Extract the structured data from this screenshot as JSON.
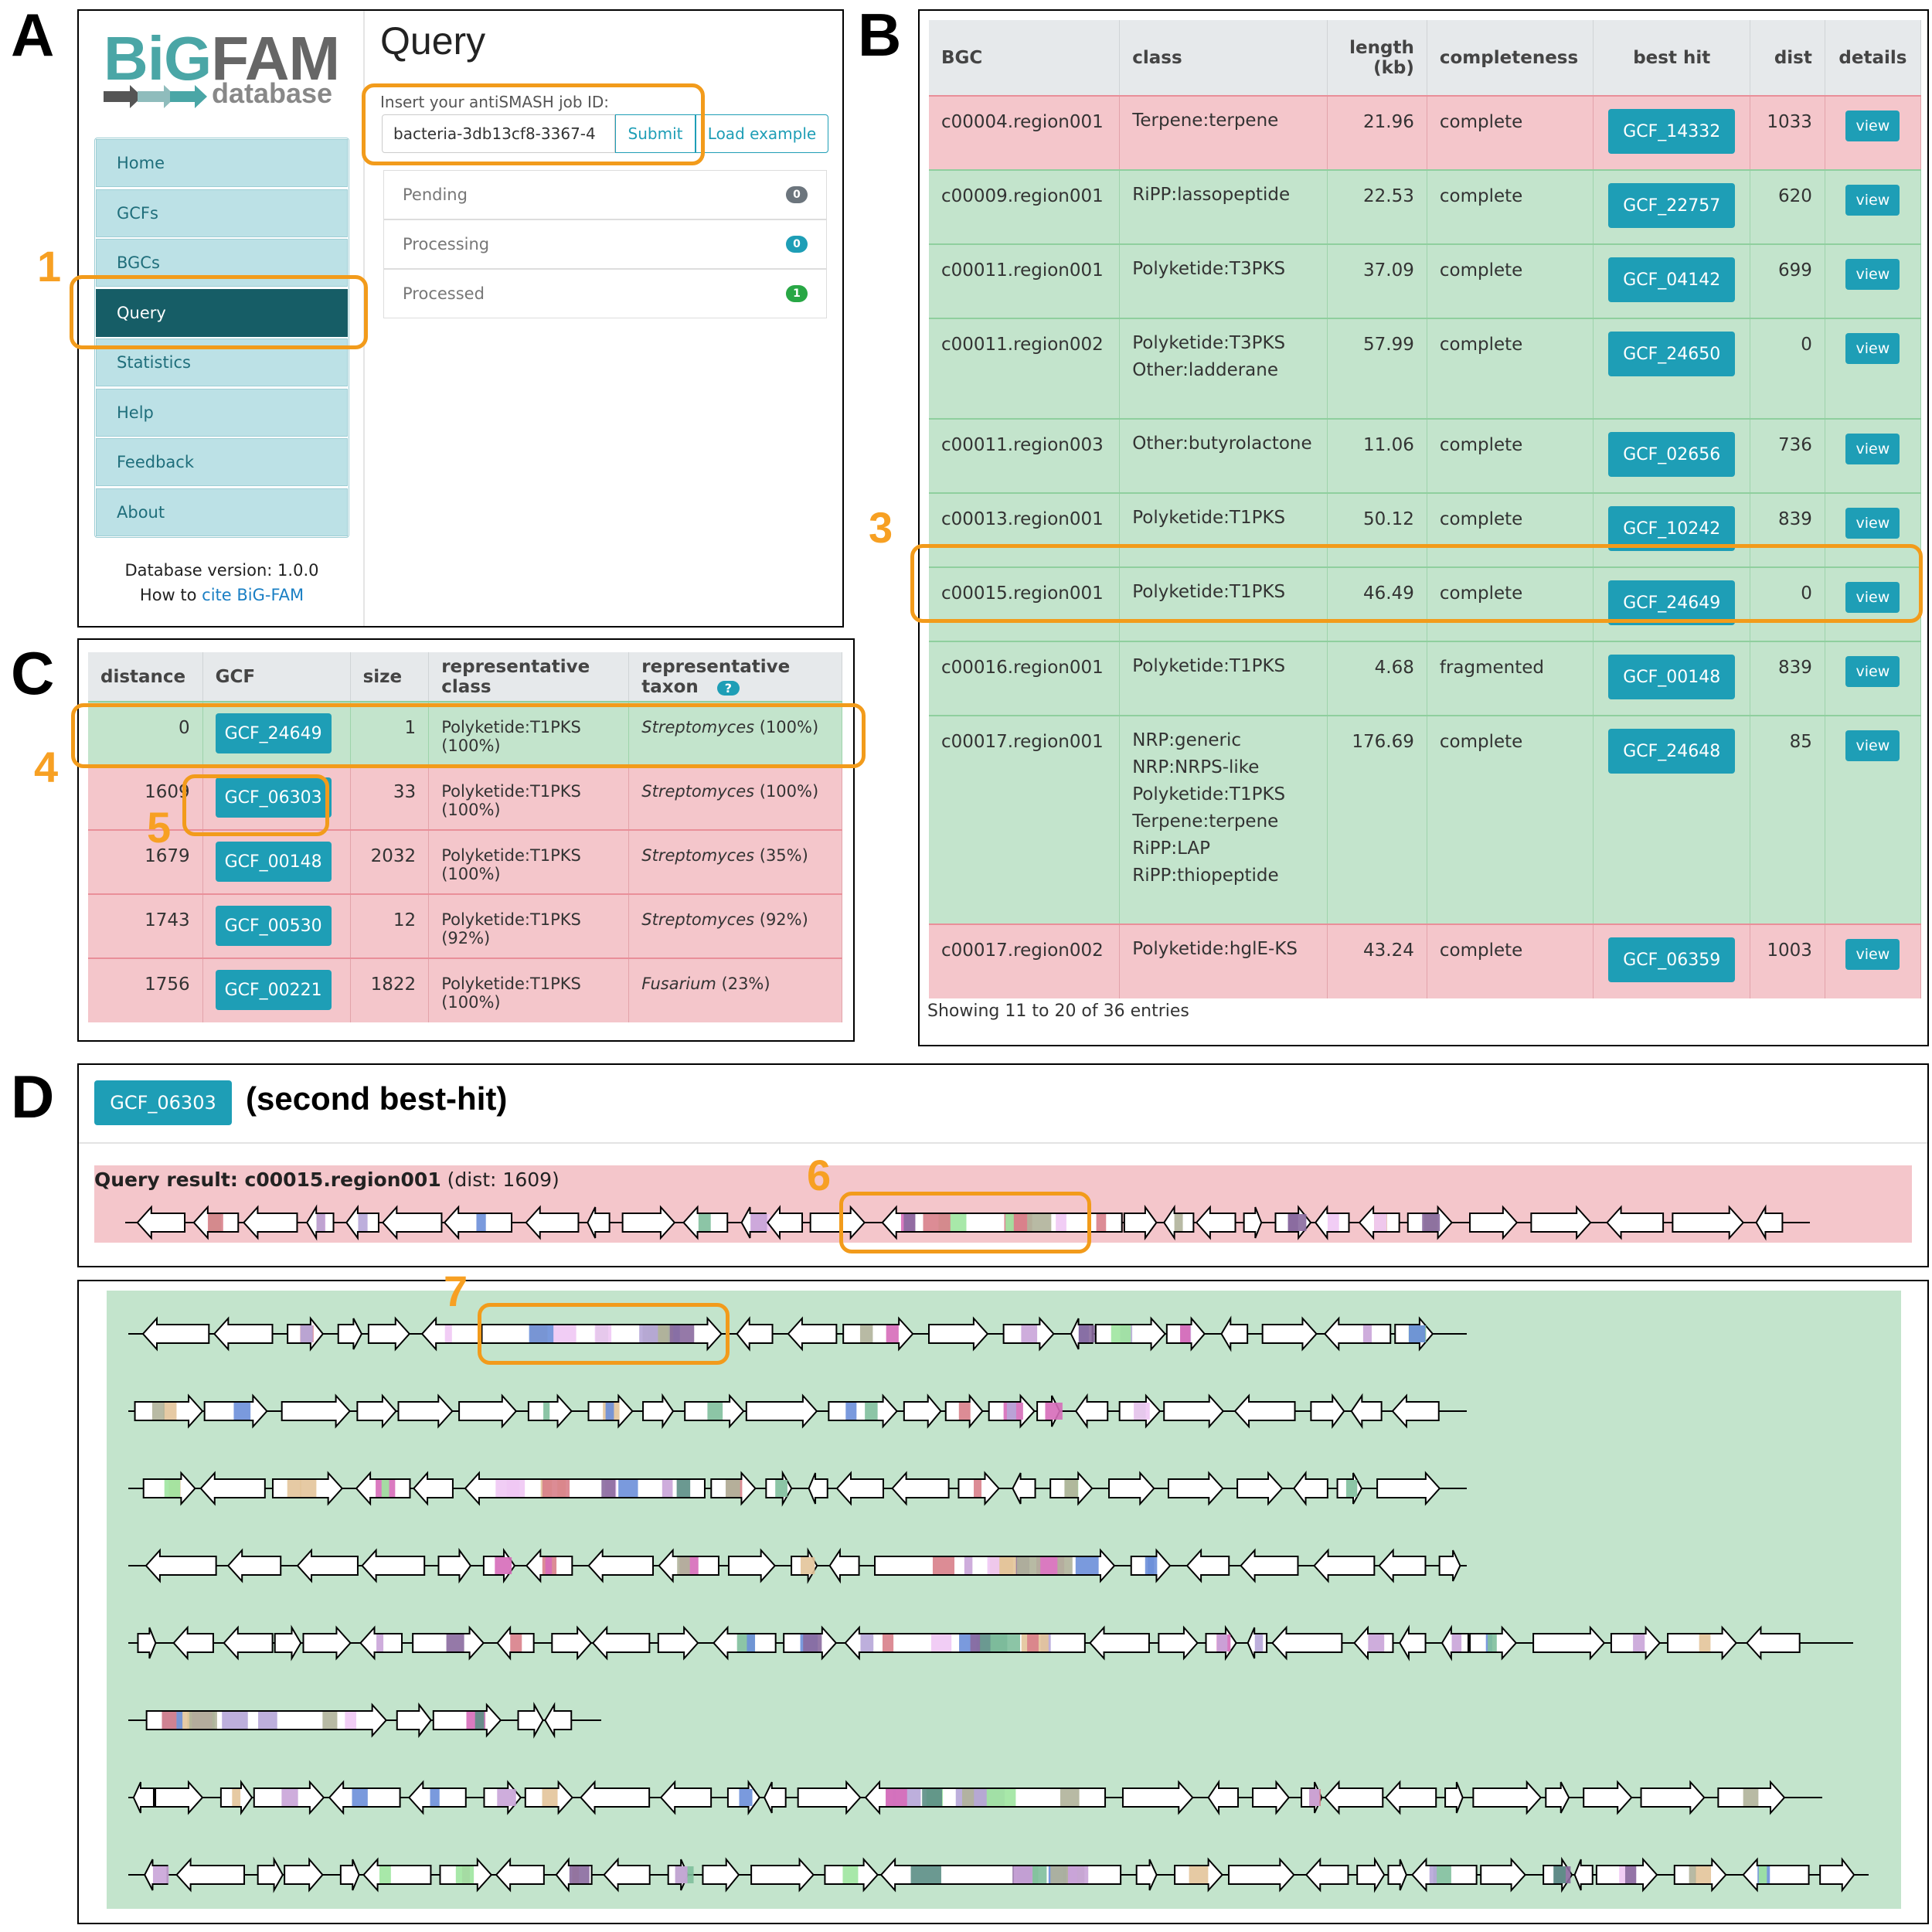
{
  "panel_labels": {
    "a": "A",
    "b": "B",
    "c": "C",
    "d": "D"
  },
  "steps": {
    "s1": "1",
    "s3": "3",
    "s4": "4",
    "s5": "5",
    "s6": "6",
    "s7": "7"
  },
  "colors": {
    "accent_orange": "#f29b1b",
    "teal": "#1e9eb6",
    "nav_active": "#165d66",
    "row_red": "#f4c6cb",
    "row_green": "#c3e4cc"
  },
  "panel_a": {
    "logo_big": "BiGFAM",
    "logo_sub": "database",
    "nav": [
      "Home",
      "GCFs",
      "BGCs",
      "Query",
      "Statistics",
      "Help",
      "Feedback",
      "About"
    ],
    "active_nav": "Query",
    "db_version": "Database version: 1.0.0",
    "cite_prefix": "How to ",
    "cite_link": "cite BiG-FAM",
    "title": "Query",
    "input_label": "Insert your antiSMASH job ID:",
    "input_value": "bacteria-3db13cf8-3367-4",
    "submit_label": "Submit",
    "load_example_label": "Load example",
    "statuses": [
      {
        "label": "Pending",
        "count": "0",
        "color": "#6c757d"
      },
      {
        "label": "Processing",
        "count": "0",
        "color": "#1e9eb6"
      },
      {
        "label": "Processed",
        "count": "1",
        "color": "#28a745"
      }
    ]
  },
  "panel_b": {
    "headers": [
      "BGC",
      "class",
      "length (kb)",
      "completeness",
      "best hit",
      "dist",
      "details"
    ],
    "rows": [
      {
        "bgc": "c00004.region001",
        "cls": [
          "Terpene:terpene"
        ],
        "len": "21.96",
        "comp": "complete",
        "hit": "GCF_14332",
        "dist": "1033",
        "view": "view",
        "color": "red"
      },
      {
        "bgc": "c00009.region001",
        "cls": [
          "RiPP:lassopeptide"
        ],
        "len": "22.53",
        "comp": "complete",
        "hit": "GCF_22757",
        "dist": "620",
        "view": "view",
        "color": "green"
      },
      {
        "bgc": "c00011.region001",
        "cls": [
          "Polyketide:T3PKS"
        ],
        "len": "37.09",
        "comp": "complete",
        "hit": "GCF_04142",
        "dist": "699",
        "view": "view",
        "color": "green"
      },
      {
        "bgc": "c00011.region002",
        "cls": [
          "Polyketide:T3PKS",
          "Other:ladderane"
        ],
        "len": "57.99",
        "comp": "complete",
        "hit": "GCF_24650",
        "dist": "0",
        "view": "view",
        "color": "green"
      },
      {
        "bgc": "c00011.region003",
        "cls": [
          "Other:butyrolactone"
        ],
        "len": "11.06",
        "comp": "complete",
        "hit": "GCF_02656",
        "dist": "736",
        "view": "view",
        "color": "green"
      },
      {
        "bgc": "c00013.region001",
        "cls": [
          "Polyketide:T1PKS"
        ],
        "len": "50.12",
        "comp": "complete",
        "hit": "GCF_10242",
        "dist": "839",
        "view": "view",
        "color": "green"
      },
      {
        "bgc": "c00015.region001",
        "cls": [
          "Polyketide:T1PKS"
        ],
        "len": "46.49",
        "comp": "complete",
        "hit": "GCF_24649",
        "dist": "0",
        "view": "view",
        "color": "green"
      },
      {
        "bgc": "c00016.region001",
        "cls": [
          "Polyketide:T1PKS"
        ],
        "len": "4.68",
        "comp": "fragmented",
        "hit": "GCF_00148",
        "dist": "839",
        "view": "view",
        "color": "green"
      },
      {
        "bgc": "c00017.region001",
        "cls": [
          "NRP:generic",
          "NRP:NRPS-like",
          "Polyketide:T1PKS",
          "Terpene:terpene",
          "RiPP:LAP",
          "RiPP:thiopeptide"
        ],
        "len": "176.69",
        "comp": "complete",
        "hit": "GCF_24648",
        "dist": "85",
        "view": "view",
        "color": "green"
      },
      {
        "bgc": "c00017.region002",
        "cls": [
          "Polyketide:hglE-KS"
        ],
        "len": "43.24",
        "comp": "complete",
        "hit": "GCF_06359",
        "dist": "1003",
        "view": "view",
        "color": "red"
      }
    ],
    "footer": "Showing 11 to 20 of 36 entries"
  },
  "panel_c": {
    "headers": [
      "distance",
      "GCF",
      "size",
      "representative class",
      "representative taxon"
    ],
    "help_icon": "?",
    "rows": [
      {
        "distance": "0",
        "gcf": "GCF_24649",
        "size": "1",
        "cls": "Polyketide:T1PKS (100%)",
        "taxon": "Streptomyces",
        "taxon_pct": " (100%)",
        "color": "green"
      },
      {
        "distance": "1609",
        "gcf": "GCF_06303",
        "size": "33",
        "cls": "Polyketide:T1PKS (100%)",
        "taxon": "Streptomyces",
        "taxon_pct": " (100%)",
        "color": "red"
      },
      {
        "distance": "1679",
        "gcf": "GCF_00148",
        "size": "2032",
        "cls": "Polyketide:T1PKS (100%)",
        "taxon": "Streptomyces",
        "taxon_pct": " (35%)",
        "color": "red"
      },
      {
        "distance": "1743",
        "gcf": "GCF_00530",
        "size": "12",
        "cls": "Polyketide:T1PKS (92%)",
        "taxon": "Streptomyces",
        "taxon_pct": " (92%)",
        "color": "red"
      },
      {
        "distance": "1756",
        "gcf": "GCF_00221",
        "size": "1822",
        "cls": "Polyketide:T1PKS (100%)",
        "taxon": "Fusarium",
        "taxon_pct": " (23%)",
        "color": "red"
      }
    ]
  },
  "panel_d": {
    "gcf_button": "GCF_06303",
    "subtitle": "(second best-hit)",
    "query_label": "Query result: c00015.region001",
    "query_dist": " (dist: 1609)"
  }
}
